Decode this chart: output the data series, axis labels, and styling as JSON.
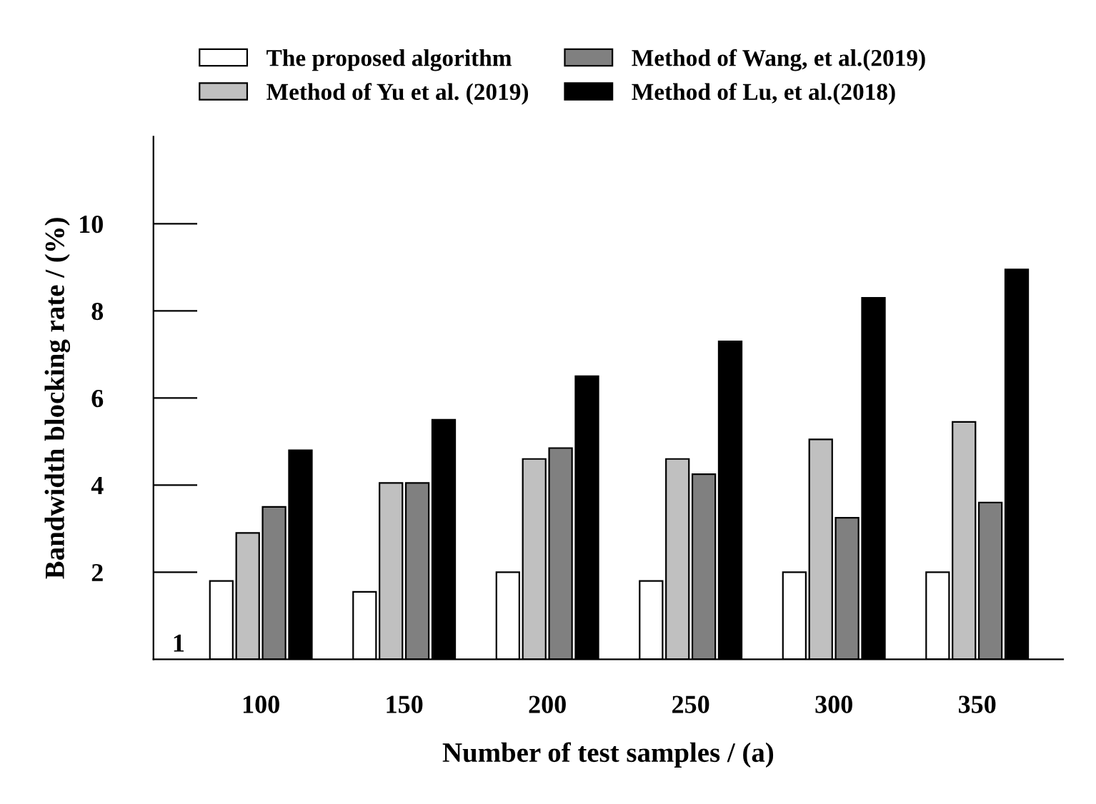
{
  "chart_data": {
    "type": "bar",
    "xlabel": "Number of test samples / (a)",
    "ylabel": "Bandwidth blocking rate / (%)",
    "categories": [
      "100",
      "150",
      "200",
      "250",
      "300",
      "350"
    ],
    "series": [
      {
        "name": "The proposed algorithm",
        "color": "#ffffff",
        "values": [
          1.8,
          1.55,
          2.0,
          1.8,
          2.0,
          2.0
        ]
      },
      {
        "name": "Method of Yu et al. (2019)",
        "color": "#c0c0c0",
        "values": [
          2.9,
          4.05,
          4.6,
          4.6,
          5.05,
          5.45
        ]
      },
      {
        "name": "Method of Wang, et al.(2019)",
        "color": "#808080",
        "values": [
          3.5,
          4.05,
          4.85,
          4.25,
          3.25,
          3.6
        ]
      },
      {
        "name": "Method of Lu, et al.(2018)",
        "color": "#000000",
        "values": [
          4.8,
          5.5,
          6.5,
          7.3,
          8.3,
          8.95
        ]
      }
    ],
    "ylim": [
      0,
      12
    ],
    "yticks": [
      2,
      4,
      6,
      8,
      10
    ],
    "grid": false,
    "legend": "top",
    "annotations": [
      "1"
    ]
  }
}
